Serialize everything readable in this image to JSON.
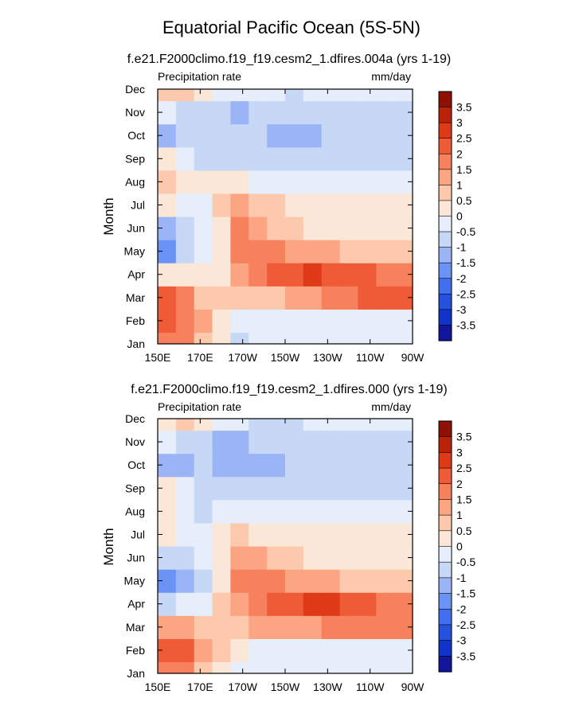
{
  "title": "Equatorial Pacific Ocean (5S-5N)",
  "chart_data": [
    {
      "type": "heatmap",
      "title": "f.e21.F2000climo.f19_f19.cesm2_1.dfires.004a (yrs 1-19)",
      "left_label": "Precipitation rate",
      "right_label": "mm/day",
      "ylabel": "Month",
      "x_ticks": [
        "150E",
        "170E",
        "170W",
        "150W",
        "130W",
        "110W",
        "90W"
      ],
      "y_ticks": [
        "Jan",
        "Feb",
        "Mar",
        "Apr",
        "May",
        "Jun",
        "Jul",
        "Aug",
        "Sep",
        "Oct",
        "Nov",
        "Dec"
      ],
      "x_range": [
        "150E",
        "90W"
      ],
      "colorbar_labels": [
        "3.5",
        "3",
        "2.5",
        "2",
        "1.5",
        "1",
        "0.5",
        "0",
        "-0.5",
        "-1",
        "-1.5",
        "-2",
        "-2.5",
        "-3",
        "-3.5"
      ],
      "values": [
        [
          1.8,
          1.5,
          0.6,
          0.2,
          -0.6,
          -0.3,
          -0.2,
          -0.2,
          -0.2,
          -0.3,
          -0.3,
          -0.3,
          -0.3,
          -0.3
        ],
        [
          2.2,
          1.8,
          1.0,
          0.4,
          -0.2,
          -0.4,
          -0.5,
          -0.3,
          -0.2,
          -0.2,
          -0.2,
          -0.2,
          -0.3,
          -0.3
        ],
        [
          2.0,
          1.7,
          0.8,
          0.7,
          0.6,
          0.7,
          0.9,
          1.2,
          1.4,
          1.6,
          1.8,
          2.0,
          2.2,
          2.0
        ],
        [
          0.4,
          0.3,
          0.1,
          0.4,
          1.2,
          1.7,
          2.3,
          2.4,
          2.5,
          2.4,
          2.3,
          2.2,
          1.8,
          1.5
        ],
        [
          -1.8,
          -1.0,
          -0.5,
          0.2,
          1.7,
          1.9,
          1.5,
          1.3,
          1.1,
          1.0,
          0.8,
          0.7,
          0.6,
          0.5
        ],
        [
          -1.2,
          -0.8,
          -0.3,
          0.1,
          1.6,
          1.2,
          0.8,
          0.6,
          0.4,
          0.3,
          0.3,
          0.2,
          0.2,
          0.1
        ],
        [
          0.3,
          -0.5,
          -0.2,
          0.6,
          1.0,
          0.8,
          0.6,
          0.4,
          0.3,
          0.2,
          0.2,
          0.1,
          0.1,
          0.1
        ],
        [
          0.6,
          0.3,
          0.3,
          0.3,
          0.1,
          -0.1,
          -0.3,
          -0.4,
          -0.4,
          -0.4,
          -0.4,
          -0.3,
          -0.3,
          -0.3
        ],
        [
          0.2,
          -0.4,
          -0.6,
          -0.7,
          -0.8,
          -0.9,
          -0.9,
          -0.9,
          -0.8,
          -0.8,
          -0.9,
          -0.9,
          -0.8,
          -0.7
        ],
        [
          -1.4,
          -0.9,
          -0.8,
          -0.9,
          -1.0,
          -1.0,
          -1.1,
          -1.2,
          -1.1,
          -1.0,
          -0.6,
          -0.8,
          -0.9,
          -0.7
        ],
        [
          -0.4,
          -0.7,
          -0.8,
          -1.0,
          -1.2,
          -1.0,
          -1.0,
          -0.9,
          -0.8,
          -0.8,
          -0.8,
          -0.8,
          -0.7,
          -0.6
        ],
        [
          0.5,
          0.6,
          0.4,
          -0.2,
          -0.4,
          -0.5,
          -0.5,
          -0.6,
          -0.5,
          -0.5,
          -0.4,
          -0.3,
          -0.2,
          -0.2
        ]
      ]
    },
    {
      "type": "heatmap",
      "title": "f.e21.F2000climo.f19_f19.cesm2_1.dfires.000 (yrs 1-19)",
      "left_label": "Precipitation rate",
      "right_label": "mm/day",
      "ylabel": "Month",
      "x_ticks": [
        "150E",
        "170E",
        "170W",
        "150W",
        "130W",
        "110W",
        "90W"
      ],
      "y_ticks": [
        "Jan",
        "Feb",
        "Mar",
        "Apr",
        "May",
        "Jun",
        "Jul",
        "Aug",
        "Sep",
        "Oct",
        "Nov",
        "Dec"
      ],
      "x_range": [
        "150E",
        "90W"
      ],
      "colorbar_labels": [
        "3.5",
        "3",
        "2.5",
        "2",
        "1.5",
        "1",
        "0.5",
        "0",
        "-0.5",
        "-1",
        "-1.5",
        "-2",
        "-2.5",
        "-3",
        "-3.5"
      ],
      "values": [
        [
          1.8,
          1.6,
          0.7,
          0.3,
          -0.5,
          -0.3,
          -0.2,
          -0.2,
          -0.2,
          -0.2,
          -0.2,
          -0.2,
          -0.2,
          -0.2
        ],
        [
          2.4,
          2.0,
          1.2,
          0.6,
          0.0,
          -0.2,
          -0.3,
          -0.2,
          -0.1,
          -0.1,
          -0.1,
          -0.1,
          -0.1,
          -0.1
        ],
        [
          1.4,
          1.4,
          0.7,
          0.6,
          0.8,
          1.0,
          1.2,
          1.3,
          1.4,
          1.5,
          1.6,
          1.8,
          1.9,
          1.8
        ],
        [
          -0.6,
          -0.5,
          -0.4,
          0.5,
          1.4,
          1.9,
          2.3,
          2.4,
          2.5,
          2.5,
          2.3,
          2.1,
          1.8,
          1.6
        ],
        [
          -1.8,
          -1.2,
          -0.8,
          0.1,
          1.6,
          1.8,
          1.5,
          1.3,
          1.2,
          1.1,
          0.9,
          0.8,
          0.6,
          0.5
        ],
        [
          -0.6,
          -0.6,
          -0.4,
          0.4,
          1.2,
          1.0,
          0.7,
          0.5,
          0.4,
          0.3,
          0.3,
          0.2,
          0.2,
          0.2
        ],
        [
          0.4,
          -0.3,
          -0.3,
          0.2,
          0.6,
          0.4,
          0.2,
          0.1,
          0.1,
          0.0,
          0.0,
          0.0,
          0.0,
          0.0
        ],
        [
          0.3,
          -0.5,
          -0.8,
          -0.3,
          -0.3,
          -0.4,
          -0.5,
          -0.5,
          -0.5,
          -0.5,
          -0.5,
          -0.5,
          -0.5,
          -0.4
        ],
        [
          0.2,
          -0.3,
          -0.6,
          -0.8,
          -0.9,
          -1.0,
          -1.0,
          -1.0,
          -0.9,
          -0.9,
          -0.9,
          -0.9,
          -0.8,
          -0.8
        ],
        [
          -1.4,
          -1.2,
          -1.0,
          -1.1,
          -1.1,
          -1.1,
          -1.1,
          -1.0,
          -1.0,
          -1.0,
          -0.7,
          -0.9,
          -0.9,
          -0.8
        ],
        [
          -0.4,
          -0.8,
          -1.0,
          -1.1,
          -1.2,
          -1.0,
          -1.0,
          -0.9,
          -0.9,
          -0.9,
          -0.8,
          -0.8,
          -0.7,
          -0.6
        ],
        [
          0.3,
          0.6,
          0.2,
          -0.3,
          -0.5,
          -0.6,
          -0.6,
          -0.6,
          -0.5,
          -0.5,
          -0.4,
          -0.4,
          -0.3,
          -0.3
        ]
      ]
    }
  ],
  "colors": {
    "ramp": [
      "#11169a",
      "#1133cc",
      "#2452df",
      "#416ff0",
      "#6b93f5",
      "#9bb4f5",
      "#c7d8f7",
      "#e6eefb",
      "#fbe7d8",
      "#fdc9ad",
      "#fba583",
      "#f7805d",
      "#ef5b36",
      "#de3a18",
      "#bc2208",
      "#8f1004"
    ]
  }
}
